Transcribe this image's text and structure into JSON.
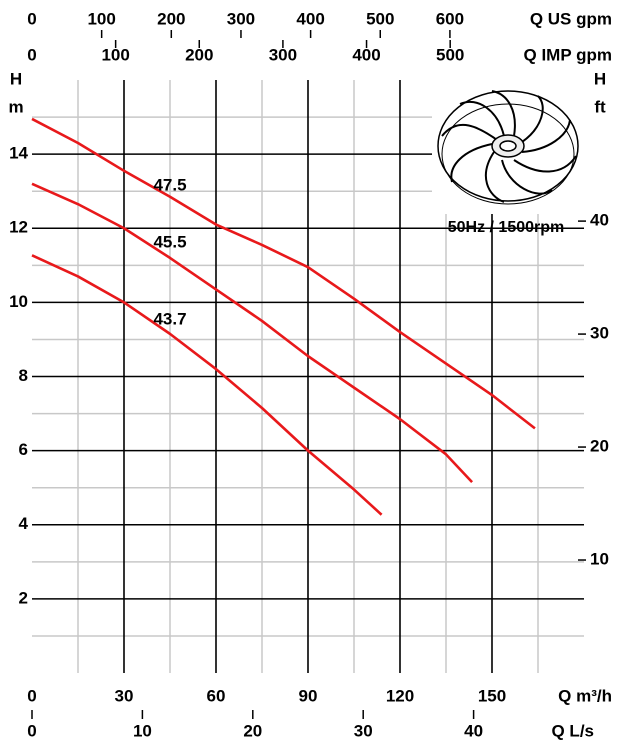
{
  "chart_data": {
    "type": "line",
    "x_label": "Q m³/h",
    "y_label": [
      "H",
      "m"
    ],
    "y2_label": [
      "H",
      "ft"
    ],
    "annotation": "50Hz / 1500rpm",
    "xlim": [
      0,
      180
    ],
    "xticks": [
      0,
      30,
      60,
      90,
      120,
      150
    ],
    "xminor": [
      15,
      45,
      75,
      105,
      135,
      165
    ],
    "ylim": [
      0,
      16
    ],
    "yticks": [
      2,
      4,
      6,
      8,
      10,
      12,
      14
    ],
    "yminor": [
      1,
      3,
      5,
      7,
      9,
      11,
      13,
      15
    ],
    "y2lim": [
      0,
      52.49
    ],
    "y2ticks": [
      10,
      20,
      30,
      40
    ],
    "top_axes": [
      {
        "label": "Q US gpm",
        "lim": [
          0,
          792.5
        ],
        "ticks": [
          0,
          100,
          200,
          300,
          400,
          500,
          600
        ]
      },
      {
        "label": "Q IMP gpm",
        "lim": [
          0,
          660
        ],
        "ticks": [
          0,
          100,
          200,
          300,
          400,
          500
        ]
      }
    ],
    "bottom_axis2": {
      "label": "Q L/s",
      "lim": [
        0,
        50
      ],
      "ticks": [
        0,
        10,
        20,
        30,
        40
      ]
    },
    "grid": true,
    "series": [
      {
        "name": "47.5",
        "color": "#e8191b",
        "x": [
          0,
          15,
          30,
          45,
          60,
          75,
          90,
          105,
          120,
          135,
          150,
          164
        ],
        "values": [
          14.95,
          14.3,
          13.55,
          12.85,
          12.1,
          11.55,
          10.95,
          10.1,
          9.2,
          8.35,
          7.5,
          6.6
        ]
      },
      {
        "name": "45.5",
        "color": "#e8191b",
        "x": [
          0,
          15,
          30,
          45,
          60,
          75,
          90,
          105,
          120,
          135,
          143.5
        ],
        "values": [
          13.2,
          12.65,
          12.0,
          11.2,
          10.35,
          9.5,
          8.55,
          7.7,
          6.85,
          5.9,
          5.15
        ]
      },
      {
        "name": "43.7",
        "color": "#e8191b",
        "x": [
          0,
          15,
          30,
          45,
          60,
          75,
          90,
          105,
          114
        ],
        "values": [
          11.27,
          10.7,
          10.0,
          9.15,
          8.2,
          7.15,
          6.0,
          4.95,
          4.27
        ]
      }
    ]
  }
}
